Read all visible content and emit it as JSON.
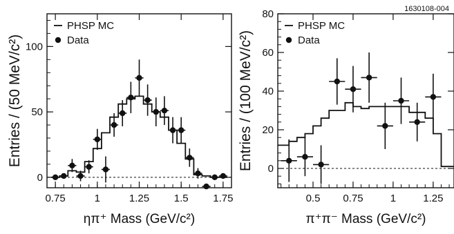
{
  "figure_id": "1630108-004",
  "chart_data": [
    {
      "type": "scatter",
      "xlabel": "ηπ⁺ Mass (GeV/c²)",
      "ylabel": "Entries / (50 MeV/c²)",
      "xlim": [
        0.7,
        1.8
      ],
      "ylim": [
        -8,
        125
      ],
      "x_ticks": [
        "0.75",
        "1",
        "1.25",
        "1.5",
        "1.75"
      ],
      "x_tick_values": [
        0.75,
        1.0,
        1.25,
        1.5,
        1.75
      ],
      "y_ticks": [
        "0",
        "50",
        "100"
      ],
      "y_tick_values": [
        0,
        50,
        100
      ],
      "zero_line": true,
      "legend": {
        "position": "top-left",
        "entries": [
          "PHSP MC",
          "Data"
        ]
      },
      "mc_histogram": {
        "name": "PHSP MC",
        "bin_width": 0.05,
        "bin_lo": [
          0.725,
          0.775,
          0.825,
          0.875,
          0.925,
          0.975,
          1.025,
          1.075,
          1.125,
          1.175,
          1.225,
          1.275,
          1.325,
          1.375,
          1.425,
          1.475,
          1.525,
          1.575,
          1.625,
          1.675,
          1.725
        ],
        "values": [
          0,
          1,
          5,
          4,
          12,
          22,
          34,
          46,
          56,
          60,
          62,
          56,
          50,
          46,
          36,
          26,
          14,
          2,
          1,
          0,
          0
        ]
      },
      "data_points": {
        "name": "Data",
        "x": [
          0.75,
          0.8,
          0.85,
          0.9,
          0.95,
          1.0,
          1.05,
          1.1,
          1.15,
          1.2,
          1.25,
          1.3,
          1.35,
          1.4,
          1.45,
          1.5,
          1.55,
          1.6,
          1.65,
          1.7,
          1.75
        ],
        "y": [
          0,
          1,
          9,
          1,
          8,
          29,
          6,
          40,
          49,
          61,
          76,
          59,
          50,
          51,
          36,
          36,
          15,
          3,
          -7,
          0,
          1
        ],
        "yerr": [
          1,
          2,
          5,
          4,
          5,
          8,
          10,
          9,
          10,
          12,
          14,
          12,
          11,
          11,
          10,
          10,
          7,
          4,
          2,
          1,
          2
        ]
      }
    },
    {
      "type": "scatter",
      "xlabel": "π⁺π⁻ Mass (GeV/c²)",
      "ylabel": "Entries / (100 MeV/c²)",
      "xlim": [
        0.28,
        1.38
      ],
      "ylim": [
        -10,
        80
      ],
      "x_ticks": [
        "0.5",
        "0.75",
        "1",
        "1.25"
      ],
      "x_tick_values": [
        0.5,
        0.75,
        1.0,
        1.25
      ],
      "y_ticks": [
        "0",
        "20",
        "40",
        "60",
        "80"
      ],
      "y_tick_values": [
        0,
        20,
        40,
        60,
        80
      ],
      "zero_line": true,
      "legend": {
        "position": "top-left",
        "entries": [
          "PHSP MC",
          "Data"
        ]
      },
      "mc_histogram": {
        "name": "PHSP MC",
        "bin_width": 0.05,
        "bin_lo": [
          0.28,
          0.3,
          0.35,
          0.4,
          0.45,
          0.5,
          0.55,
          0.6,
          0.65,
          0.7,
          0.75,
          0.8,
          0.85,
          0.9,
          0.95,
          1.0,
          1.05,
          1.1,
          1.15,
          1.2,
          1.25,
          1.3,
          1.35
        ],
        "values": [
          12,
          12,
          14,
          16,
          18,
          22,
          26,
          30,
          30,
          34,
          32,
          31,
          32,
          32,
          32,
          32,
          32,
          29,
          29,
          26,
          18,
          1,
          1
        ]
      },
      "data_points": {
        "name": "Data",
        "x": [
          0.35,
          0.45,
          0.55,
          0.65,
          0.75,
          0.85,
          0.95,
          1.05,
          1.15,
          1.25
        ],
        "y": [
          4,
          6,
          2,
          45,
          41,
          47,
          22,
          35,
          24,
          37
        ],
        "yerr": [
          11,
          10,
          10,
          12,
          12,
          13,
          12,
          12,
          10,
          12
        ]
      }
    }
  ]
}
